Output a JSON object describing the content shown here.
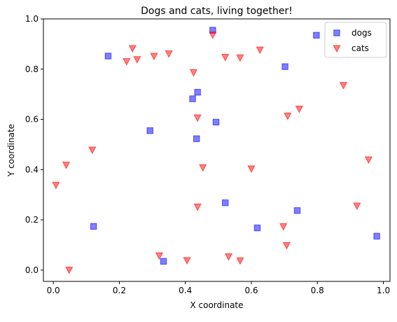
{
  "chart_data": {
    "type": "scatter",
    "title": "Dogs and cats, living together!",
    "xlabel": "X coordinate",
    "ylabel": "Y coordinate",
    "xlim": [
      -0.03,
      1.02
    ],
    "ylim": [
      -0.045,
      1.0
    ],
    "xticks": [
      "0.0",
      "0.2",
      "0.4",
      "0.6",
      "0.8",
      "1.0"
    ],
    "yticks": [
      "0.0",
      "0.2",
      "0.4",
      "0.6",
      "0.8",
      "1.0"
    ],
    "grid": false,
    "legend_position": "top-right",
    "series": [
      {
        "name": "dogs",
        "marker": "square",
        "color": "#0000ff",
        "points": [
          [
            0.166,
            0.852
          ],
          [
            0.483,
            0.955
          ],
          [
            0.797,
            0.935
          ],
          [
            0.702,
            0.81
          ],
          [
            0.437,
            0.708
          ],
          [
            0.422,
            0.682
          ],
          [
            0.493,
            0.589
          ],
          [
            0.293,
            0.555
          ],
          [
            0.434,
            0.523
          ],
          [
            0.521,
            0.268
          ],
          [
            0.739,
            0.237
          ],
          [
            0.122,
            0.174
          ],
          [
            0.618,
            0.168
          ],
          [
            0.98,
            0.135
          ],
          [
            0.334,
            0.035
          ]
        ]
      },
      {
        "name": "cats",
        "marker": "triangle-down",
        "color": "#ff0000",
        "points": [
          [
            0.483,
            0.937
          ],
          [
            0.24,
            0.883
          ],
          [
            0.626,
            0.877
          ],
          [
            0.35,
            0.862
          ],
          [
            0.305,
            0.852
          ],
          [
            0.521,
            0.848
          ],
          [
            0.566,
            0.846
          ],
          [
            0.254,
            0.839
          ],
          [
            0.222,
            0.831
          ],
          [
            0.425,
            0.787
          ],
          [
            0.879,
            0.736
          ],
          [
            0.745,
            0.642
          ],
          [
            0.71,
            0.614
          ],
          [
            0.437,
            0.607
          ],
          [
            0.118,
            0.479
          ],
          [
            0.955,
            0.44
          ],
          [
            0.039,
            0.419
          ],
          [
            0.453,
            0.409
          ],
          [
            0.6,
            0.404
          ],
          [
            0.008,
            0.339
          ],
          [
            0.92,
            0.256
          ],
          [
            0.437,
            0.252
          ],
          [
            0.697,
            0.174
          ],
          [
            0.707,
            0.099
          ],
          [
            0.321,
            0.058
          ],
          [
            0.531,
            0.054
          ],
          [
            0.405,
            0.039
          ],
          [
            0.566,
            0.038
          ],
          [
            0.048,
            0.001
          ]
        ]
      }
    ]
  }
}
